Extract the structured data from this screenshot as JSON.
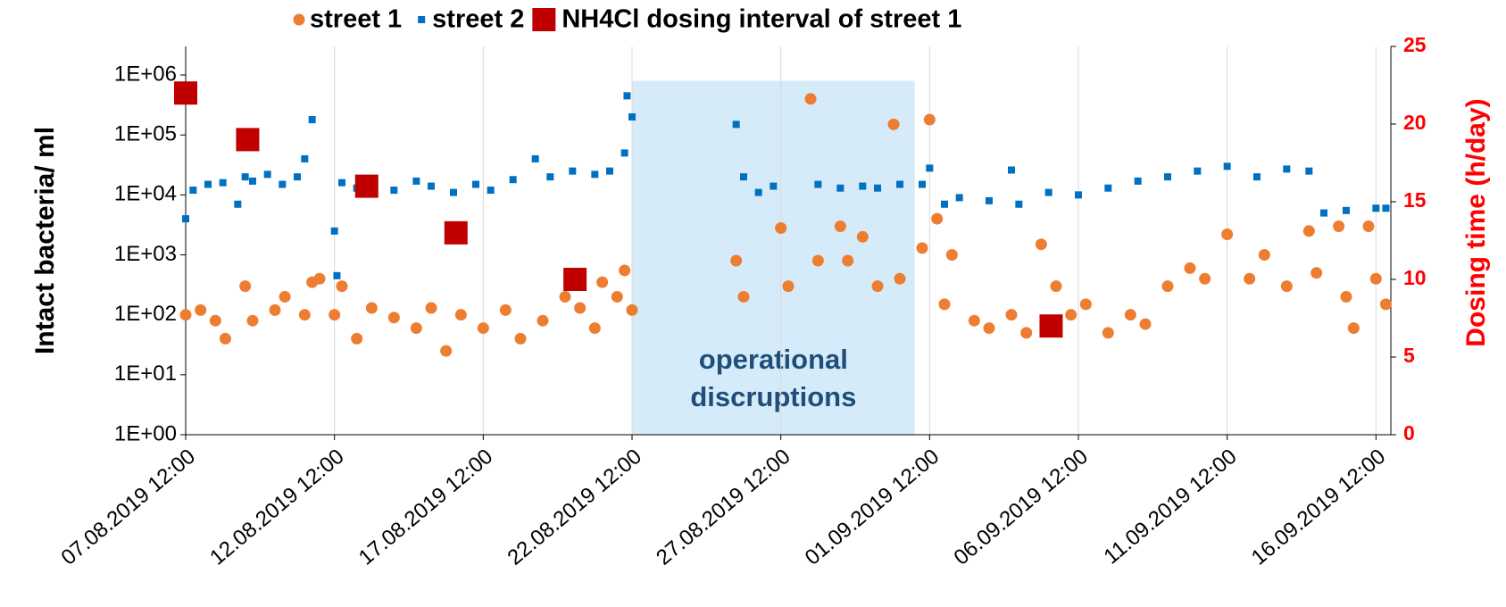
{
  "chart_data": {
    "type": "scatter",
    "ylabel": "Intact bacteria/ ml",
    "y2label": "Dosing time (h/day)",
    "log_y": true,
    "grid": "x",
    "legend": "top",
    "xlim": [
      "2019-08-07T12:00",
      "2019-09-17T00:00"
    ],
    "xticks": [
      {
        "value": "2019-08-07T12:00",
        "label": "07.08.2019 12:00"
      },
      {
        "value": "2019-08-12T12:00",
        "label": "12.08.2019 12:00"
      },
      {
        "value": "2019-08-17T12:00",
        "label": "17.08.2019 12:00"
      },
      {
        "value": "2019-08-22T12:00",
        "label": "22.08.2019 12:00"
      },
      {
        "value": "2019-08-27T12:00",
        "label": "27.08.2019 12:00"
      },
      {
        "value": "2019-09-01T12:00",
        "label": "01.09.2019 12:00"
      },
      {
        "value": "2019-09-06T12:00",
        "label": "06.09.2019 12:00"
      },
      {
        "value": "2019-09-11T12:00",
        "label": "11.09.2019 12:00"
      },
      {
        "value": "2019-09-16T12:00",
        "label": "16.09.2019 12:00"
      }
    ],
    "ylim": [
      1,
      3000000
    ],
    "yticks": [
      {
        "value": 1,
        "label": "1E+00"
      },
      {
        "value": 10,
        "label": "1E+01"
      },
      {
        "value": 100,
        "label": "1E+02"
      },
      {
        "value": 1000,
        "label": "1E+03"
      },
      {
        "value": 10000,
        "label": "1E+04"
      },
      {
        "value": 100000,
        "label": "1E+05"
      },
      {
        "value": 1000000,
        "label": "1E+06"
      }
    ],
    "y2lim": [
      0,
      25
    ],
    "y2ticks": [
      0,
      5,
      10,
      15,
      20,
      25
    ],
    "y2color": "#ff0000",
    "annotation": {
      "text": [
        "operational",
        "discruptions"
      ],
      "x_start": "2019-08-22T12:00",
      "x_end": "2019-09-01T00:00",
      "y_top": 800000,
      "color": "#d5ebfa",
      "text_color": "#1f4e79"
    },
    "series": [
      {
        "name": "street 1",
        "color": "#ed7d31",
        "marker": "circle",
        "x": [
          "2019-08-07T12:00",
          "2019-08-08T00:00",
          "2019-08-08T12:00",
          "2019-08-08T20:00",
          "2019-08-09T12:00",
          "2019-08-09T18:00",
          "2019-08-10T12:00",
          "2019-08-10T20:00",
          "2019-08-11T12:00",
          "2019-08-11T18:00",
          "2019-08-12T00:00",
          "2019-08-12T12:00",
          "2019-08-12T18:00",
          "2019-08-13T06:00",
          "2019-08-13T18:00",
          "2019-08-14T12:00",
          "2019-08-15T06:00",
          "2019-08-15T18:00",
          "2019-08-16T06:00",
          "2019-08-16T18:00",
          "2019-08-17T12:00",
          "2019-08-18T06:00",
          "2019-08-18T18:00",
          "2019-08-19T12:00",
          "2019-08-20T06:00",
          "2019-08-20T18:00",
          "2019-08-21T06:00",
          "2019-08-21T12:00",
          "2019-08-22T00:00",
          "2019-08-22T06:00",
          "2019-08-22T12:00",
          "2019-08-26T00:00",
          "2019-08-26T06:00",
          "2019-08-27T12:00",
          "2019-08-27T18:00",
          "2019-08-28T12:00",
          "2019-08-28T18:00",
          "2019-08-29T12:00",
          "2019-08-29T18:00",
          "2019-08-30T06:00",
          "2019-08-30T18:00",
          "2019-08-31T07:00",
          "2019-08-31T12:00",
          "2019-09-01T06:00",
          "2019-09-01T12:00",
          "2019-09-01T18:00",
          "2019-09-02T00:00",
          "2019-09-02T06:00",
          "2019-09-03T00:00",
          "2019-09-03T12:00",
          "2019-09-04T06:00",
          "2019-09-04T18:00",
          "2019-09-05T06:00",
          "2019-09-05T18:00",
          "2019-09-06T06:00",
          "2019-09-06T18:00",
          "2019-09-07T12:00",
          "2019-09-08T06:00",
          "2019-09-08T18:00",
          "2019-09-09T12:00",
          "2019-09-10T06:00",
          "2019-09-10T18:00",
          "2019-09-11T12:00",
          "2019-09-12T06:00",
          "2019-09-12T18:00",
          "2019-09-13T12:00",
          "2019-09-14T06:00",
          "2019-09-14T12:00",
          "2019-09-15T06:00",
          "2019-09-15T12:00",
          "2019-09-15T18:00",
          "2019-09-16T06:00",
          "2019-09-16T12:00",
          "2019-09-16T20:00"
        ],
        "values": [
          100,
          120,
          80,
          40,
          300,
          80,
          120,
          200,
          100,
          350,
          400,
          100,
          300,
          40,
          130,
          90,
          60,
          130,
          25,
          100,
          60,
          120,
          40,
          80,
          200,
          130,
          60,
          350,
          200,
          550,
          120,
          800,
          200,
          2800,
          300,
          400000,
          800,
          3000,
          800,
          2000,
          300,
          150000,
          400,
          1300,
          180000,
          4000,
          150,
          1000,
          80,
          60,
          100,
          50,
          1500,
          300,
          100,
          150,
          50,
          100,
          70,
          300,
          600,
          400,
          2200,
          400,
          1000,
          300,
          2500,
          500,
          3000,
          200,
          60,
          3000,
          400,
          150
        ]
      },
      {
        "name": "street 2",
        "color": "#0070c0",
        "marker": "square",
        "x": [
          "2019-08-07T12:00",
          "2019-08-07T18:00",
          "2019-08-08T06:00",
          "2019-08-08T18:00",
          "2019-08-09T06:00",
          "2019-08-09T12:00",
          "2019-08-09T18:00",
          "2019-08-10T06:00",
          "2019-08-10T18:00",
          "2019-08-11T06:00",
          "2019-08-11T12:00",
          "2019-08-11T18:00",
          "2019-08-12T12:00",
          "2019-08-12T14:00",
          "2019-08-12T18:00",
          "2019-08-13T06:00",
          "2019-08-13T18:00",
          "2019-08-14T12:00",
          "2019-08-15T06:00",
          "2019-08-15T18:00",
          "2019-08-16T12:00",
          "2019-08-17T06:00",
          "2019-08-17T18:00",
          "2019-08-18T12:00",
          "2019-08-19T06:00",
          "2019-08-19T18:00",
          "2019-08-20T12:00",
          "2019-08-21T06:00",
          "2019-08-21T18:00",
          "2019-08-22T06:00",
          "2019-08-22T08:00",
          "2019-08-22T12:00",
          "2019-08-26T00:00",
          "2019-08-26T06:00",
          "2019-08-26T18:00",
          "2019-08-27T06:00",
          "2019-08-28T18:00",
          "2019-08-29T12:00",
          "2019-08-30T06:00",
          "2019-08-30T18:00",
          "2019-08-31T12:00",
          "2019-09-01T06:00",
          "2019-09-01T12:00",
          "2019-09-02T00:00",
          "2019-09-02T12:00",
          "2019-09-03T12:00",
          "2019-09-04T06:00",
          "2019-09-04T12:00",
          "2019-09-05T12:00",
          "2019-09-06T12:00",
          "2019-09-07T12:00",
          "2019-09-08T12:00",
          "2019-09-09T12:00",
          "2019-09-10T12:00",
          "2019-09-11T12:00",
          "2019-09-12T12:00",
          "2019-09-13T12:00",
          "2019-09-14T06:00",
          "2019-09-14T18:00",
          "2019-09-15T12:00",
          "2019-09-16T12:00",
          "2019-09-16T20:00"
        ],
        "values": [
          4000,
          12000,
          15000,
          16000,
          7000,
          20000,
          17000,
          22000,
          15000,
          20000,
          40000,
          180000,
          2500,
          450,
          16000,
          13000,
          15000,
          12000,
          17000,
          14000,
          11000,
          15000,
          12000,
          18000,
          40000,
          20000,
          25000,
          22000,
          25000,
          50000,
          450000,
          200000,
          150000,
          20000,
          11000,
          14000,
          15000,
          13000,
          14000,
          13000,
          15000,
          15000,
          28000,
          7000,
          9000,
          8000,
          26000,
          7000,
          11000,
          10000,
          13000,
          17000,
          20000,
          25000,
          30000,
          20000,
          27000,
          25000,
          5000,
          5500,
          6000,
          6000
        ]
      },
      {
        "name": "NH4Cl dosing interval of street 1",
        "color": "#c00000",
        "marker": "bigsquare",
        "axis": "y2",
        "x": [
          "2019-08-07T12:00",
          "2019-08-09T14:00",
          "2019-08-13T14:00",
          "2019-08-16T14:00",
          "2019-08-20T14:00",
          "2019-09-05T14:00"
        ],
        "values": [
          22,
          19,
          16,
          13,
          10,
          7
        ]
      }
    ]
  }
}
